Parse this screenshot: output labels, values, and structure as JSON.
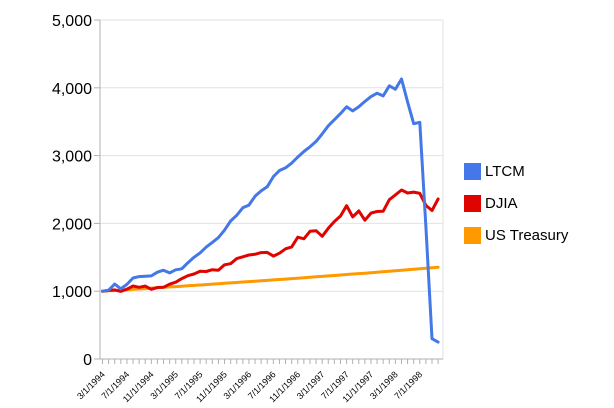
{
  "chart_data": {
    "type": "line",
    "title": "",
    "grid": true,
    "legend_position": "right",
    "y_axis": {
      "min": 0,
      "max": 5000,
      "tick_step": 1000,
      "tick_labels": [
        "0",
        "1,000",
        "2,000",
        "3,000",
        "4,000",
        "5,000"
      ]
    },
    "x_axis": {
      "tick_labels": [
        "3/1/1994",
        "7/1/1994",
        "11/1/1994",
        "3/1/1995",
        "7/1/1995",
        "11/1/1995",
        "3/1/1996",
        "7/1/1996",
        "11/1/1996",
        "3/1/1997",
        "7/1/1997",
        "11/1/1997",
        "3/1/1998",
        "7/1/1998"
      ],
      "label_every_n_ticks": 4,
      "minor_ticks_are_months": true
    },
    "colors": {
      "ltcm_blue": "#4478E8",
      "djia_red": "#E00400",
      "treasury_orange": "#FF9900",
      "gridline": "#e2e2e2",
      "axis": "#b0b0b0",
      "text": "#000000"
    },
    "series": [
      {
        "name": "LTCM",
        "color": "#4478E8",
        "values": [
          1000,
          1015,
          1105,
          1035,
          1100,
          1195,
          1215,
          1220,
          1225,
          1280,
          1310,
          1270,
          1315,
          1330,
          1420,
          1500,
          1565,
          1650,
          1720,
          1790,
          1900,
          2035,
          2120,
          2230,
          2270,
          2400,
          2480,
          2540,
          2690,
          2780,
          2820,
          2890,
          2980,
          3060,
          3130,
          3210,
          3320,
          3440,
          3530,
          3620,
          3720,
          3660,
          3720,
          3800,
          3870,
          3920,
          3880,
          4030,
          3980,
          4130,
          3790,
          3470,
          3490,
          1950,
          300,
          250
        ]
      },
      {
        "name": "DJIA",
        "color": "#E00400",
        "values": [
          1000,
          1011,
          1019,
          997,
          1029,
          1076,
          1057,
          1075,
          1028,
          1054,
          1057,
          1103,
          1133,
          1186,
          1228,
          1253,
          1295,
          1290,
          1317,
          1310,
          1390,
          1406,
          1481,
          1507,
          1534,
          1544,
          1569,
          1572,
          1517,
          1560,
          1625,
          1654,
          1796,
          1773,
          1884,
          1892,
          1810,
          1928,
          2028,
          2109,
          2261,
          2096,
          2185,
          2047,
          2152,
          2175,
          2180,
          2350,
          2420,
          2493,
          2448,
          2462,
          2443,
          2265,
          2190,
          2360
        ]
      },
      {
        "name": "US Treasury",
        "color": "#FF9900",
        "values": [
          1000,
          1006,
          1011,
          1017,
          1022,
          1028,
          1034,
          1039,
          1045,
          1051,
          1057,
          1063,
          1068,
          1074,
          1080,
          1086,
          1092,
          1098,
          1104,
          1110,
          1116,
          1123,
          1129,
          1135,
          1141,
          1147,
          1154,
          1160,
          1166,
          1173,
          1179,
          1186,
          1192,
          1199,
          1205,
          1212,
          1219,
          1225,
          1232,
          1239,
          1246,
          1253,
          1259,
          1266,
          1273,
          1280,
          1287,
          1294,
          1302,
          1309,
          1316,
          1323,
          1330,
          1338,
          1345,
          1352
        ]
      }
    ]
  }
}
